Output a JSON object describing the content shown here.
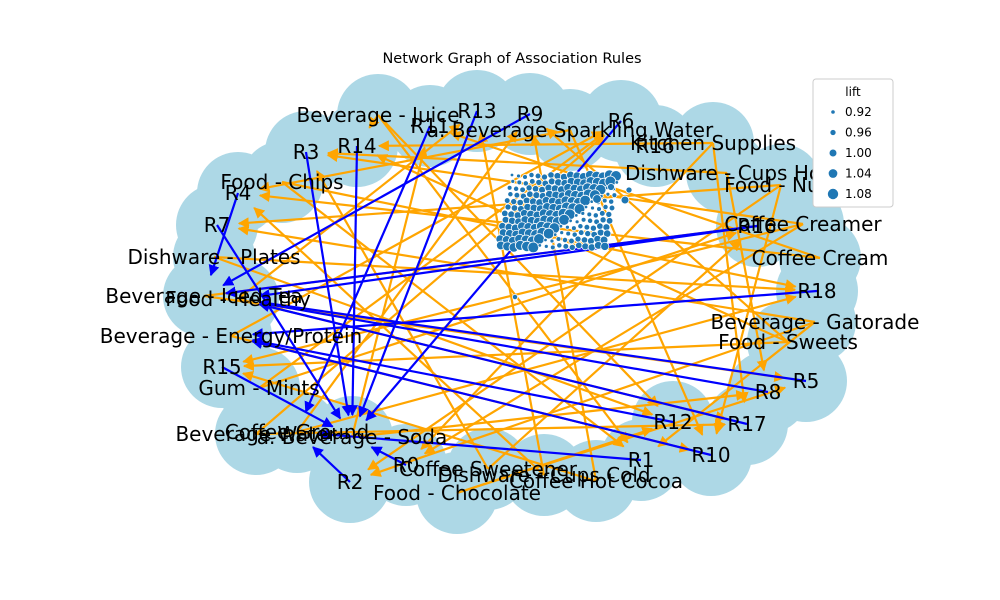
{
  "title": "Network Graph of Association Rules",
  "colors": {
    "node": "#add8e6",
    "edge_item_to_rule": "#ffa500",
    "edge_rule_to_item": "#0000ff",
    "scatter": "#1f77b4"
  },
  "nodes": [
    {
      "id": "Beverage - Juice",
      "label": "Beverage - Juice"
    },
    {
      "id": "R13",
      "label": "R13"
    },
    {
      "id": "R9",
      "label": "R9"
    },
    {
      "id": "R11",
      "label": "R11"
    },
    {
      "id": "R6",
      "label": "R6"
    },
    {
      "id": "Beverage Sparkling Water",
      "label": "a. Beverage Sparkling Water"
    },
    {
      "id": "R14",
      "label": "R14"
    },
    {
      "id": "R3",
      "label": "R3"
    },
    {
      "id": "Kitchen Supplies",
      "label": "Kitchen Supplies"
    },
    {
      "id": "R16_top",
      "label": "R16"
    },
    {
      "id": "Dishware - Cups Hot",
      "label": "Dishware - Cups Hot"
    },
    {
      "id": "Food - Chips",
      "label": "Food - Chips"
    },
    {
      "id": "Food - Nuts",
      "label": "Food - Nuts"
    },
    {
      "id": "R4",
      "label": "R4"
    },
    {
      "id": "R7",
      "label": "R7"
    },
    {
      "id": "Coffee Creamer",
      "label": "Coffee Creamer"
    },
    {
      "id": "R16",
      "label": "R16"
    },
    {
      "id": "Dishware - Plates",
      "label": "Dishware - Plates"
    },
    {
      "id": "Coffee Cream",
      "label": "Coffee Cream"
    },
    {
      "id": "Beverage - Iced Tea",
      "label": "Beverage - Iced Tea"
    },
    {
      "id": "Food - Healthy",
      "label": "Food - Healthy"
    },
    {
      "id": "R18",
      "label": "R18"
    },
    {
      "id": "Beverage - Gatorade",
      "label": "Beverage - Gatorade"
    },
    {
      "id": "Beverage - Energy/Protein",
      "label": "Beverage - Energy/Protein"
    },
    {
      "id": "Food - Sweets",
      "label": "Food - Sweets"
    },
    {
      "id": "R15",
      "label": "R15"
    },
    {
      "id": "R5",
      "label": "R5"
    },
    {
      "id": "Gum - Mints",
      "label": "Gum - Mints"
    },
    {
      "id": "R8",
      "label": "R8"
    },
    {
      "id": "R12",
      "label": "R12"
    },
    {
      "id": "R17",
      "label": "R17"
    },
    {
      "id": "Coffee Ground",
      "label": "Coffee Ground"
    },
    {
      "id": "Beverage Water",
      "label": "Beverage Water"
    },
    {
      "id": "Beverage - Soda",
      "label": "a. Beverage - Soda"
    },
    {
      "id": "R10",
      "label": "R10"
    },
    {
      "id": "R1",
      "label": "R1"
    },
    {
      "id": "R0",
      "label": "R0"
    },
    {
      "id": "Coffee Sweetener",
      "label": "Coffee Sweetener"
    },
    {
      "id": "Dishware - Cups Cold",
      "label": "Dishware - Cups Cold"
    },
    {
      "id": "Coffee Hot Cocoa",
      "label": "Coffee Hot Cocoa"
    },
    {
      "id": "R2",
      "label": "R2"
    },
    {
      "id": "Food - Chocolate",
      "label": "Food - Chocolate"
    }
  ],
  "edges_item_to_rule": [
    [
      "Beverage - Juice",
      "R14"
    ],
    [
      "Beverage - Juice",
      "R12"
    ],
    [
      "Beverage Sparkling Water",
      "R4"
    ],
    [
      "Beverage Sparkling Water",
      "R10"
    ],
    [
      "Kitchen Supplies",
      "R14"
    ],
    [
      "Kitchen Supplies",
      "R17"
    ],
    [
      "Dishware - Cups Hot",
      "R3"
    ],
    [
      "Dishware - Cups Hot",
      "R8"
    ],
    [
      "Food - Chips",
      "R18"
    ],
    [
      "Food - Chips",
      "R1"
    ],
    [
      "Food - Nuts",
      "R7"
    ],
    [
      "Food - Nuts",
      "R2"
    ],
    [
      "Coffee Creamer",
      "R15"
    ],
    [
      "Coffee Creamer",
      "R0"
    ],
    [
      "Dishware - Plates",
      "R18"
    ],
    [
      "Dishware - Plates",
      "R12"
    ],
    [
      "Coffee Cream",
      "R4"
    ],
    [
      "Coffee Cream",
      "R11"
    ],
    [
      "Beverage - Iced Tea",
      "R5"
    ],
    [
      "Beverage - Iced Tea",
      "R16"
    ],
    [
      "Food - Healthy",
      "R17"
    ],
    [
      "Food - Healthy",
      "R13"
    ],
    [
      "Beverage - Gatorade",
      "R7"
    ],
    [
      "Beverage - Gatorade",
      "R1"
    ],
    [
      "Beverage - Energy/Protein",
      "R10"
    ],
    [
      "Beverage - Energy/Protein",
      "R6"
    ],
    [
      "Food - Sweets",
      "R15"
    ],
    [
      "Food - Sweets",
      "R14"
    ],
    [
      "Gum - Mints",
      "R16"
    ],
    [
      "Gum - Mints",
      "R6"
    ],
    [
      "Coffee Ground",
      "R9"
    ],
    [
      "Coffee Ground",
      "R18"
    ],
    [
      "Beverage - Soda",
      "R11"
    ],
    [
      "Beverage - Soda",
      "R8"
    ],
    [
      "Coffee Sweetener",
      "R3"
    ],
    [
      "Coffee Sweetener",
      "R16"
    ],
    [
      "Dishware - Cups Cold",
      "R13"
    ],
    [
      "Dishware - Cups Cold",
      "R4"
    ],
    [
      "Coffee Hot Cocoa",
      "R9"
    ],
    [
      "Coffee Hot Cocoa",
      "R15"
    ],
    [
      "Food - Chocolate",
      "R5"
    ],
    [
      "Food - Chocolate",
      "R12"
    ],
    [
      "Beverage Water",
      "R17"
    ],
    [
      "Beverage Water",
      "R6"
    ],
    [
      "Beverage - Juice",
      "R1"
    ],
    [
      "Food - Nuts",
      "R10"
    ],
    [
      "Coffee Creamer",
      "R3"
    ],
    [
      "Kitchen Supplies",
      "R0"
    ],
    [
      "Food - Sweets",
      "R9"
    ],
    [
      "Beverage - Gatorade",
      "R2"
    ]
  ],
  "edges_rule_to_item": [
    [
      "R13",
      "Beverage - Soda"
    ],
    [
      "R11",
      "Coffee Ground"
    ],
    [
      "R9",
      "Beverage - Iced Tea"
    ],
    [
      "R6",
      "Beverage - Soda"
    ],
    [
      "R14",
      "Beverage - Soda"
    ],
    [
      "R3",
      "Beverage - Soda"
    ],
    [
      "R16",
      "Food - Healthy"
    ],
    [
      "R18",
      "Beverage - Energy/Protein"
    ],
    [
      "R8",
      "Food - Healthy"
    ],
    [
      "R5",
      "Food - Healthy"
    ],
    [
      "R12",
      "Beverage - Energy/Protein"
    ],
    [
      "R17",
      "Food - Healthy"
    ],
    [
      "R10",
      "Beverage - Energy/Protein"
    ],
    [
      "R1",
      "Coffee Ground"
    ],
    [
      "R2",
      "Coffee Ground"
    ],
    [
      "R15",
      "Beverage - Soda"
    ],
    [
      "R7",
      "Beverage - Soda"
    ],
    [
      "R4",
      "Beverage - Iced Tea"
    ],
    [
      "R0",
      "Beverage - Soda"
    ],
    [
      "R16",
      "Beverage - Iced Tea"
    ]
  ],
  "scatter_lift": [
    0.92,
    0.93,
    0.95,
    0.96,
    0.97,
    0.98,
    0.99,
    1.0,
    1.01,
    1.02,
    1.03,
    1.04,
    1.05,
    1.06,
    1.07,
    1.08,
    1.09
  ],
  "legend": {
    "title": "lift",
    "entries": [
      {
        "label": "0.92",
        "value": 0.92
      },
      {
        "label": "0.96",
        "value": 0.96
      },
      {
        "label": "1.00",
        "value": 1.0
      },
      {
        "label": "1.04",
        "value": 1.04
      },
      {
        "label": "1.08",
        "value": 1.08
      }
    ]
  }
}
